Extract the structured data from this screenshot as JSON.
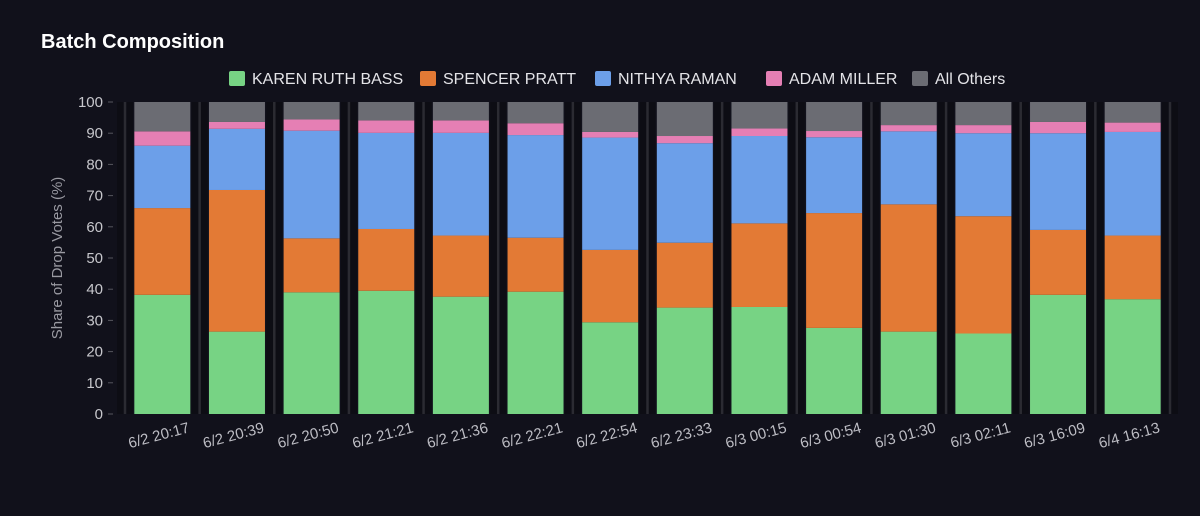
{
  "chart_data": {
    "type": "bar",
    "stacked": true,
    "title": "Batch Composition",
    "ylabel": "Share of Drop Votes (%)",
    "xlabel": "",
    "ylim": [
      0,
      100
    ],
    "yticks": [
      0,
      10,
      20,
      30,
      40,
      50,
      60,
      70,
      80,
      90,
      100
    ],
    "grid": false,
    "legend_position": "top",
    "categories": [
      "6/2 20:17",
      "6/2 20:39",
      "6/2 20:50",
      "6/2 21:21",
      "6/2 21:36",
      "6/2 22:21",
      "6/2 22:54",
      "6/2 23:33",
      "6/3 00:15",
      "6/3 00:54",
      "6/3 01:30",
      "6/3 02:11",
      "6/3 16:09",
      "6/4 16:13"
    ],
    "series": [
      {
        "name": "KAREN RUTH BASS",
        "color": "#77d384",
        "values": [
          38.2,
          26.4,
          39.0,
          39.5,
          37.6,
          39.2,
          29.4,
          34.1,
          34.3,
          27.6,
          26.4,
          25.8,
          38.2,
          36.8
        ]
      },
      {
        "name": "SPENCER PRATT",
        "color": "#e37a35",
        "values": [
          27.8,
          45.4,
          17.3,
          19.8,
          19.6,
          17.3,
          23.2,
          20.8,
          26.8,
          36.8,
          40.8,
          37.6,
          20.8,
          20.4
        ]
      },
      {
        "name": "NITHYA RAMAN",
        "color": "#6c9fe9",
        "values": [
          20.0,
          19.6,
          34.5,
          30.8,
          32.9,
          32.9,
          36.0,
          31.9,
          28.0,
          24.3,
          23.4,
          26.6,
          31.0,
          33.2
        ]
      },
      {
        "name": "ADAM MILLER",
        "color": "#e57fb4",
        "values": [
          4.6,
          2.2,
          3.6,
          4.0,
          4.0,
          3.8,
          1.8,
          2.3,
          2.4,
          2.0,
          2.0,
          2.6,
          3.6,
          3.0
        ]
      },
      {
        "name": "All Others",
        "color": "#6b6c73",
        "values": [
          9.4,
          6.4,
          5.6,
          5.9,
          5.9,
          6.8,
          9.6,
          10.9,
          8.5,
          9.3,
          7.4,
          7.4,
          6.4,
          6.6
        ]
      }
    ]
  }
}
